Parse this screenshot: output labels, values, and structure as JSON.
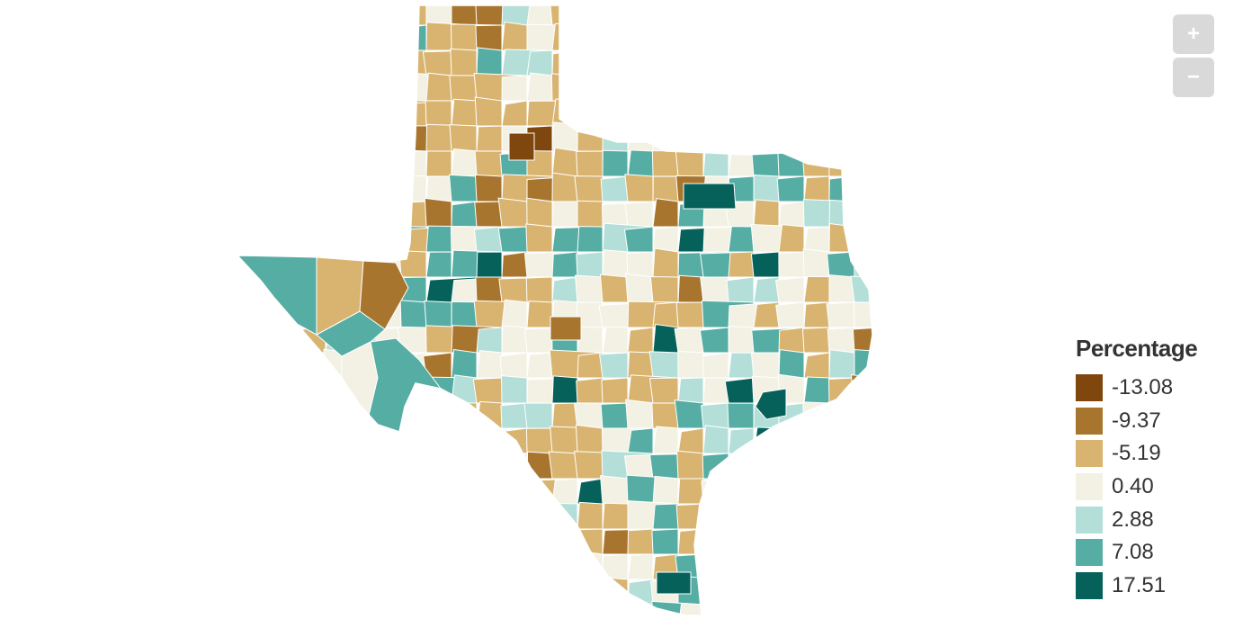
{
  "zoom": {
    "in_label": "+",
    "out_label": "−"
  },
  "legend": {
    "title": "Percentage",
    "items": [
      {
        "label": "-13.08",
        "color": "#7f460e"
      },
      {
        "label": "-9.37",
        "color": "#a8752e"
      },
      {
        "label": "-5.19",
        "color": "#d9b470"
      },
      {
        "label": "0.40",
        "color": "#f2f1e4"
      },
      {
        "label": "2.88",
        "color": "#b3dfd8"
      },
      {
        "label": "7.08",
        "color": "#56ada3"
      },
      {
        "label": "17.51",
        "color": "#06615b"
      }
    ]
  }
}
